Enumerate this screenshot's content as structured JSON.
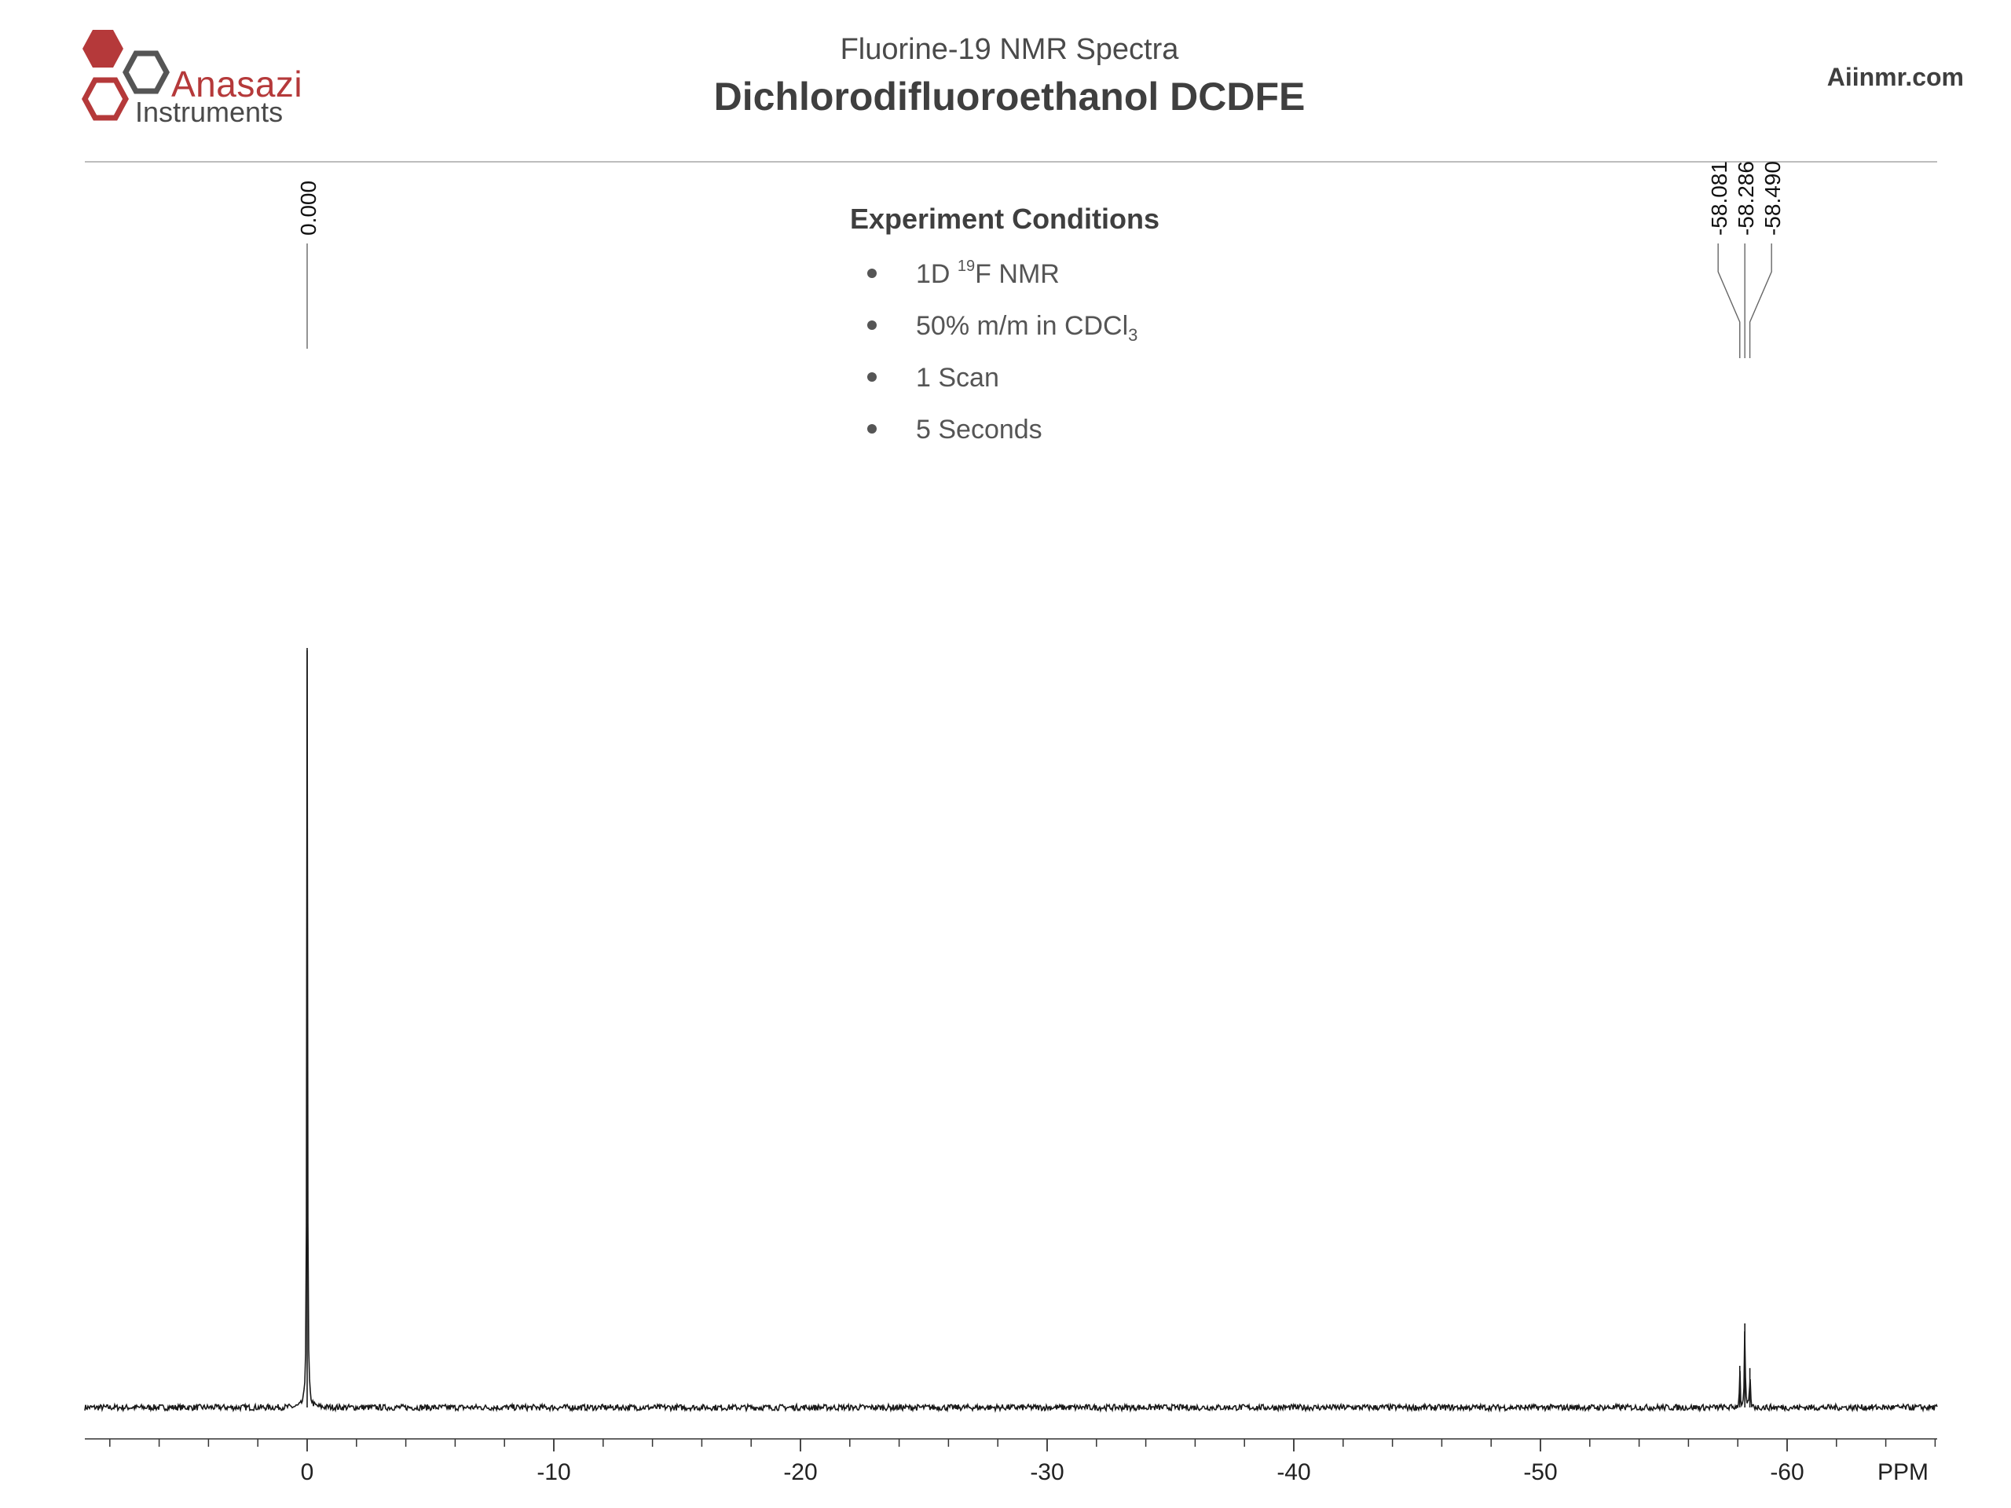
{
  "header": {
    "logo_name": "Anasazi",
    "logo_sub": "Instruments",
    "subtitle": "Fluorine-19 NMR Spectra",
    "title": "Dichlorodifluoroethanol DCDFE",
    "site": "Aiinmr.com"
  },
  "conditions": {
    "title": "Experiment Conditions",
    "items": [
      {
        "pre": "1D ",
        "sup": "19",
        "post": "F NMR",
        "sub": ""
      },
      {
        "pre": "50% m/m in CDCl",
        "sup": "",
        "post": "",
        "sub": "3"
      },
      {
        "pre": "1 Scan",
        "sup": "",
        "post": "",
        "sub": ""
      },
      {
        "pre": "5 Seconds",
        "sup": "",
        "post": "",
        "sub": ""
      }
    ]
  },
  "colors": {
    "brand_red": "#b5393a",
    "brand_gray": "#4a4a4a",
    "trace": "#1a1a1a"
  },
  "chart_data": {
    "type": "line",
    "xlabel": "PPM",
    "xlim": [
      9,
      -66
    ],
    "x_reversed": true,
    "ticks_major": [
      0,
      -10,
      -20,
      -30,
      -40,
      -50,
      -60
    ],
    "tick_labels": [
      "0",
      "-10",
      "-20",
      "-30",
      "-40",
      "-50",
      "-60"
    ],
    "minor_tick_step": 2,
    "grid": false,
    "legend": "none",
    "peaks": [
      {
        "ppm": 0.0,
        "intensity": 1.0
      },
      {
        "ppm": -58.081,
        "intensity": 0.055
      },
      {
        "ppm": -58.286,
        "intensity": 0.111
      },
      {
        "ppm": -58.49,
        "intensity": 0.052
      }
    ],
    "peak_labels": [
      {
        "ppm": 0.0,
        "label": "0.000"
      },
      {
        "ppm": -58.081,
        "label": "-58.081"
      },
      {
        "ppm": -58.286,
        "label": "-58.286"
      },
      {
        "ppm": -58.49,
        "label": "-58.490"
      }
    ],
    "noise_level": 0.004
  }
}
